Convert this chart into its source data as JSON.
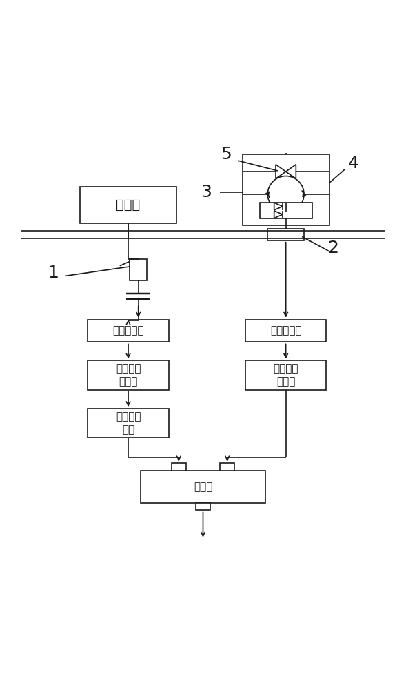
{
  "fig_width": 5.89,
  "fig_height": 10.0,
  "dpi": 100,
  "bg_color": "#ffffff",
  "line_color": "#1a1a1a",
  "lw": 1.2,
  "labels": {
    "arc_chamber": "灯弧室",
    "osc1": "第一示波器",
    "osc2": "第二示波器",
    "vf1_line1": "第一电压",
    "vf1_line2": "跟随器",
    "vf2_line1": "第二电压",
    "vf2_line2": "跟随器",
    "diff_line1": "微分电路",
    "diff_line2": "单元",
    "adder": "加法器"
  },
  "numbers": {
    "n1": "1",
    "n2": "2",
    "n3": "3",
    "n4": "4",
    "n5": "5"
  },
  "font_size_chinese": 11,
  "font_size_numbers": 18
}
